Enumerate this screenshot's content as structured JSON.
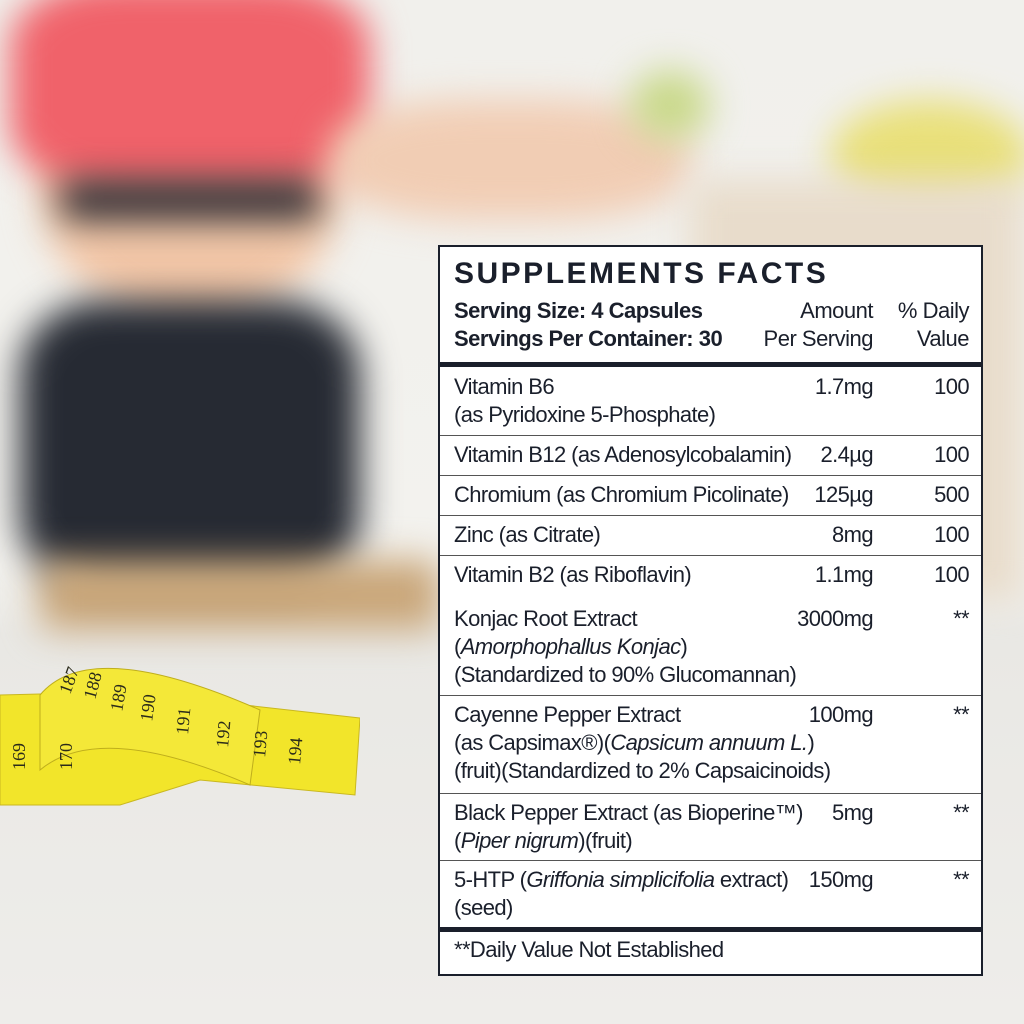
{
  "panel": {
    "title": "SUPPLEMENTS FACTS",
    "serving_size": "Serving Size: 4 Capsules",
    "servings_per_container": "Servings Per Container: 30",
    "col_amount": [
      "Amount",
      "Per Serving"
    ],
    "col_dv": [
      "% Daily",
      "Value"
    ],
    "rows": [
      {
        "lines": [
          [
            {
              "t": "Vitamin B6"
            }
          ],
          [
            {
              "t": "(as Pyridoxine 5-Phosphate)"
            }
          ]
        ],
        "amount": "1.7mg",
        "dv": "100"
      },
      {
        "lines": [
          [
            {
              "t": "Vitamin B12 (as Adenosylcobalamin)"
            }
          ]
        ],
        "amount": "2.4µg",
        "dv": "100"
      },
      {
        "lines": [
          [
            {
              "t": "Chromium (as Chromium Picolinate)"
            }
          ]
        ],
        "amount": "125µg",
        "dv": "500"
      },
      {
        "lines": [
          [
            {
              "t": "Zinc (as Citrate)"
            }
          ]
        ],
        "amount": "8mg",
        "dv": "100"
      },
      {
        "lines": [
          [
            {
              "t": "Vitamin B2 (as Riboflavin)"
            }
          ]
        ],
        "amount": "1.1mg",
        "dv": "100"
      },
      {
        "lines": [
          [
            {
              "t": "Konjac Root Extract"
            }
          ],
          [
            {
              "t": "("
            },
            {
              "t": "Amorphophallus Konjac",
              "i": true
            },
            {
              "t": ")"
            }
          ],
          [
            {
              "t": "(Standardized to 90% Glucomannan)"
            }
          ]
        ],
        "amount": "3000mg",
        "dv": "**"
      },
      {
        "lines": [
          [
            {
              "t": "Cayenne Pepper Extract"
            }
          ],
          [
            {
              "t": "(as Capsimax®)("
            },
            {
              "t": "Capsicum annuum L.",
              "i": true
            },
            {
              "t": ")"
            }
          ],
          [
            {
              "t": "(fruit)(Standardized to 2% Capsaicinoids)"
            }
          ]
        ],
        "amount": "100mg",
        "dv": "**"
      },
      {
        "lines": [
          [
            {
              "t": "Black Pepper Extract (as Bioperine™)"
            }
          ],
          [
            {
              "t": "("
            },
            {
              "t": "Piper nigrum",
              "i": true
            },
            {
              "t": ")(fruit)"
            }
          ]
        ],
        "amount": "5mg",
        "dv": "**"
      },
      {
        "lines": [
          [
            {
              "t": "5-HTP ("
            },
            {
              "t": "Griffonia simplicifolia",
              "i": true
            },
            {
              "t": " extract)"
            }
          ],
          [
            {
              "t": "(seed)"
            }
          ]
        ],
        "amount": "150mg",
        "dv": "**"
      }
    ],
    "footnote": "**Daily Value Not Established"
  },
  "tape_numbers": [
    "169",
    "170",
    "187",
    "188",
    "189",
    "190",
    "191",
    "192",
    "193",
    "194"
  ],
  "colors": {
    "ink": "#1a1f2b",
    "tape": "#f2e52a",
    "top": "#f0626a"
  }
}
